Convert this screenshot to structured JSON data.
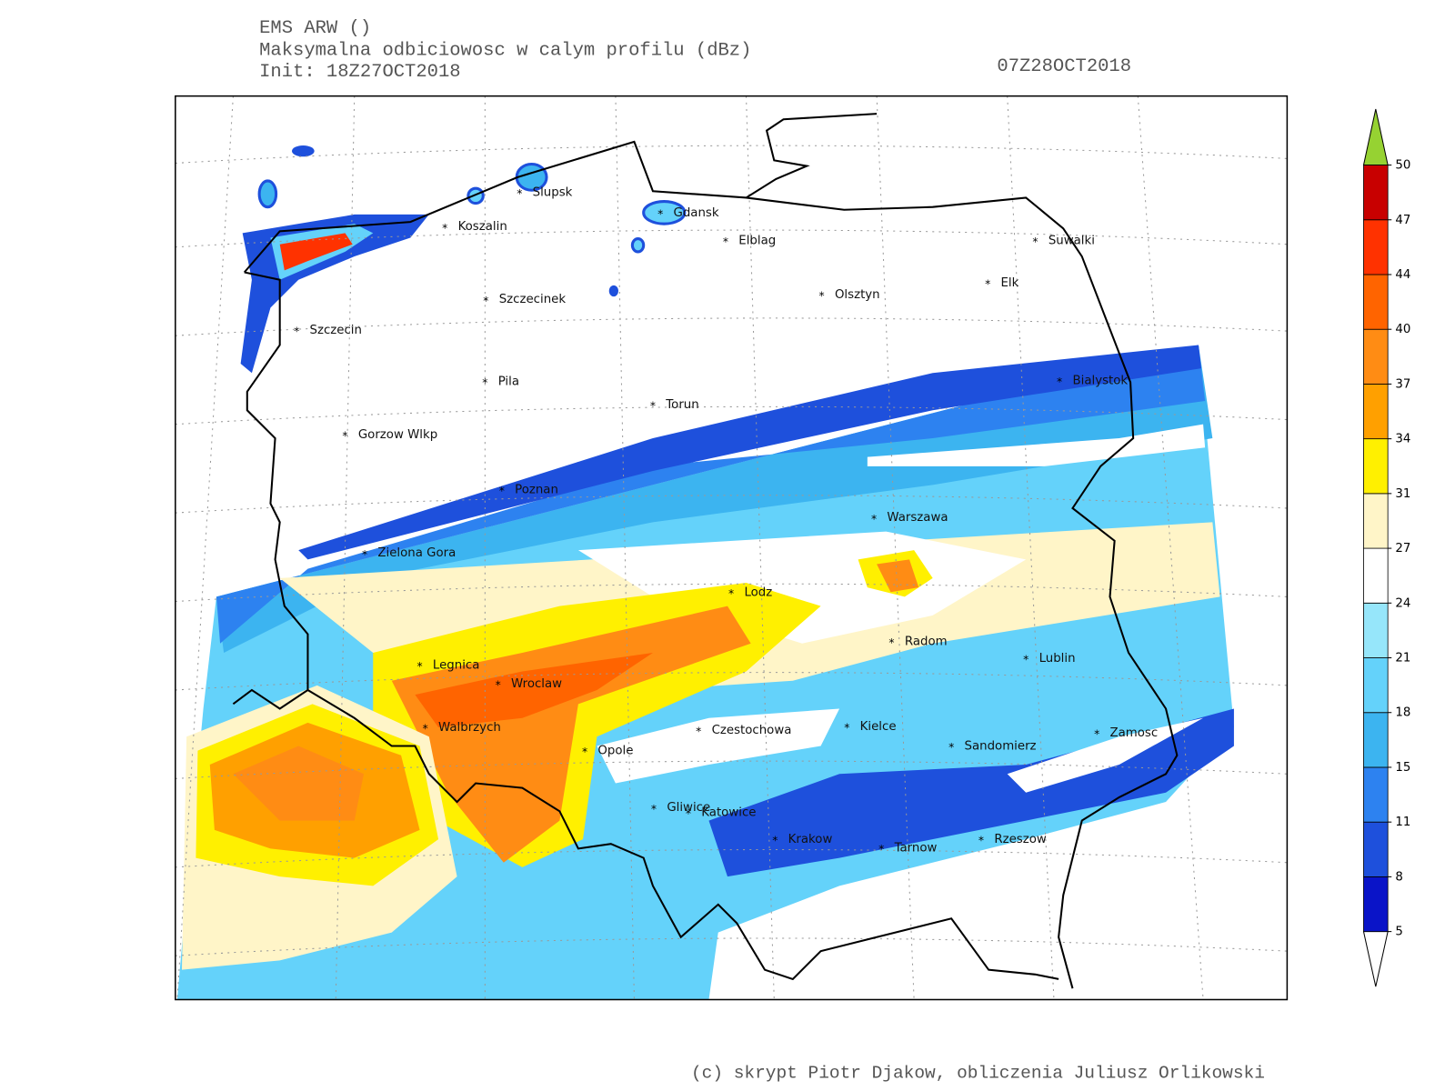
{
  "header": {
    "model": "EMS ARW ()",
    "product": "Maksymalna odbiciowosc w calym profilu (dBz)",
    "init": "Init: 18Z27OCT2018",
    "valid": "07Z28OCT2018"
  },
  "cities": [
    {
      "name": "Slupsk"
    },
    {
      "name": "Koszalin"
    },
    {
      "name": "Gdansk"
    },
    {
      "name": "Elblag"
    },
    {
      "name": "Suwalki"
    },
    {
      "name": "Elk"
    },
    {
      "name": "Olsztyn"
    },
    {
      "name": "Szczecinek"
    },
    {
      "name": "Szczecin"
    },
    {
      "name": "Pila"
    },
    {
      "name": "Torun"
    },
    {
      "name": "Bialystok"
    },
    {
      "name": "Gorzow Wlkp"
    },
    {
      "name": "Poznan"
    },
    {
      "name": "Warszawa"
    },
    {
      "name": "Zielona Gora"
    },
    {
      "name": "Lodz"
    },
    {
      "name": "Radom"
    },
    {
      "name": "Lublin"
    },
    {
      "name": "Legnica"
    },
    {
      "name": "Wroclaw"
    },
    {
      "name": "Walbrzych"
    },
    {
      "name": "Czestochowa"
    },
    {
      "name": "Kielce"
    },
    {
      "name": "Zamosc"
    },
    {
      "name": "Opole"
    },
    {
      "name": "Sandomierz"
    },
    {
      "name": "Gliwice"
    },
    {
      "name": "Katowice"
    },
    {
      "name": "Krakow"
    },
    {
      "name": "Tarnow"
    },
    {
      "name": "Rzeszow"
    }
  ],
  "colorbar": {
    "ticks": [
      5,
      8,
      11,
      15,
      18,
      21,
      24,
      27,
      31,
      34,
      37,
      40,
      44,
      47,
      50
    ],
    "colors": [
      "#ffffff",
      "#0a14c8",
      "#1e50dc",
      "#2d82f0",
      "#3cb4f0",
      "#64d2fa",
      "#96e6fa",
      "#ffffff",
      "#fff5c8",
      "#fff000",
      "#ffa000",
      "#ff8c14",
      "#ff6400",
      "#ff3200",
      "#c80000",
      "#96d232"
    ]
  },
  "credit": "(c) skrypt Piotr Djakow, obliczenia Juliusz Orlikowski"
}
